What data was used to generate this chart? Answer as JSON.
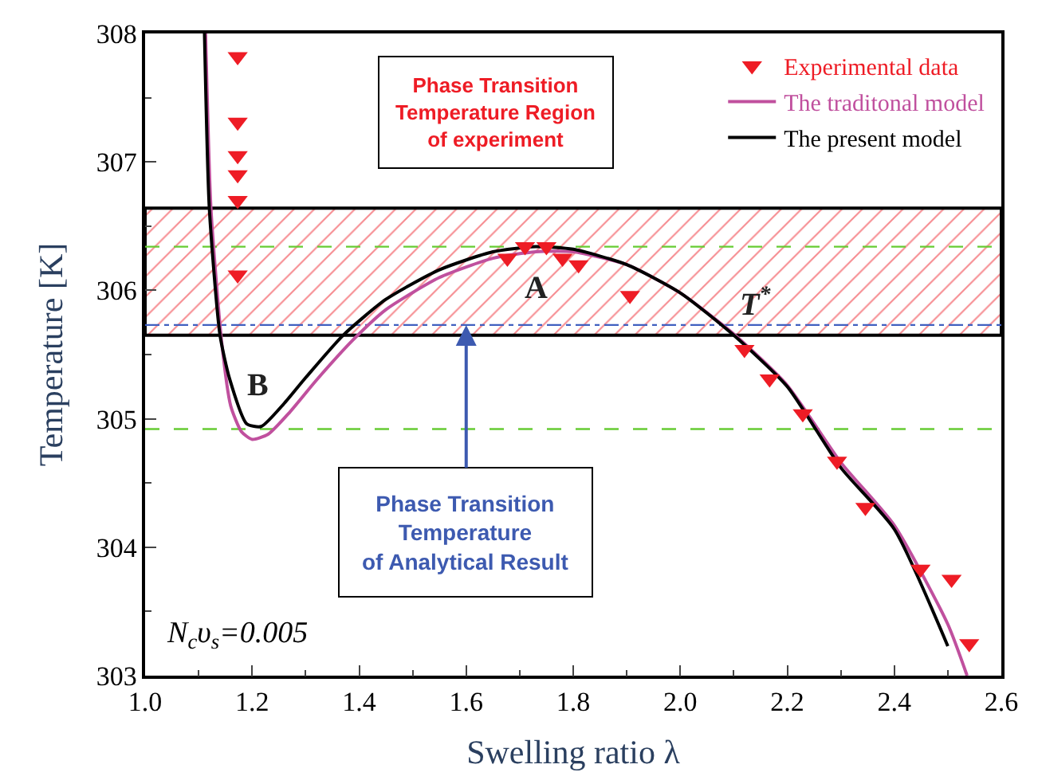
{
  "chart_data": {
    "type": "line",
    "xlabel": "Swelling ratio λ",
    "ylabel": "Temperature [K]",
    "xlim": [
      1.0,
      2.6
    ],
    "ylim": [
      303,
      308
    ],
    "xticks": [
      {
        "value": 1.0,
        "label": "1.0"
      },
      {
        "value": 1.2,
        "label": "1.2"
      },
      {
        "value": 1.4,
        "label": "1.4"
      },
      {
        "value": 1.6,
        "label": "1.6"
      },
      {
        "value": 1.8,
        "label": "1.8"
      },
      {
        "value": 2.0,
        "label": "2.0"
      },
      {
        "value": 2.2,
        "label": "2.2"
      },
      {
        "value": 2.4,
        "label": "2.4"
      },
      {
        "value": 2.6,
        "label": "2.6"
      }
    ],
    "yticks": [
      303,
      304,
      305,
      306,
      307,
      308
    ],
    "grid": false,
    "legend": "top right",
    "series": [
      {
        "name": "Experimental data",
        "type": "scatter",
        "marker": "triangle",
        "color": "#ee1c25",
        "x": [
          1.173,
          1.173,
          1.173,
          1.173,
          1.173,
          1.173,
          1.677,
          1.71,
          1.75,
          1.78,
          1.81,
          1.906,
          2.12,
          2.167,
          2.229,
          2.293,
          2.346,
          2.449,
          2.507,
          2.54
        ],
        "values": [
          307.82,
          307.31,
          307.05,
          306.9,
          306.7,
          306.12,
          306.25,
          306.34,
          306.34,
          306.25,
          306.2,
          305.96,
          305.54,
          305.31,
          305.04,
          304.67,
          304.31,
          303.83,
          303.75,
          303.25
        ]
      },
      {
        "name": "The traditonal model",
        "color": "#c0509e",
        "x": [
          1.113,
          1.123,
          1.143,
          1.16,
          1.18,
          1.2,
          1.23,
          1.27,
          1.32,
          1.39,
          1.45,
          1.55,
          1.65,
          1.73,
          1.8,
          1.9,
          2.0,
          2.1,
          2.2,
          2.3,
          2.4,
          2.5,
          2.536
        ],
        "values": [
          308,
          306.64,
          305.6,
          305.1,
          304.9,
          304.84,
          304.88,
          305.05,
          305.3,
          305.62,
          305.85,
          306.1,
          306.25,
          306.3,
          306.3,
          306.2,
          305.98,
          305.66,
          305.26,
          304.66,
          304.17,
          303.4,
          303.0
        ]
      },
      {
        "name": "The present model",
        "color": "#000000",
        "x": [
          1.111,
          1.12,
          1.14,
          1.158,
          1.19,
          1.217,
          1.26,
          1.3,
          1.37,
          1.45,
          1.55,
          1.65,
          1.73,
          1.8,
          1.9,
          2.0,
          2.1,
          2.2,
          2.3,
          2.4,
          2.5
        ],
        "values": [
          308,
          306.64,
          305.65,
          305.31,
          304.96,
          304.94,
          305.12,
          305.32,
          305.65,
          305.93,
          306.16,
          306.3,
          306.34,
          306.32,
          306.2,
          305.98,
          305.65,
          305.25,
          304.62,
          304.14,
          303.23
        ]
      }
    ],
    "bands": [
      {
        "axis": "y",
        "from": 305.65,
        "to": 306.64,
        "color": "#ee1c25"
      }
    ],
    "ref_lines": [
      {
        "axis": "y",
        "value": 306.34,
        "color": "#66cc33",
        "line_style": "dashed"
      },
      {
        "axis": "y",
        "value": 304.92,
        "color": "#66cc33",
        "line_style": "dashed"
      },
      {
        "axis": "y",
        "value": 305.73,
        "color": "#4060c0",
        "line_style": "dashdot"
      }
    ],
    "annotations": [
      {
        "text": "A",
        "x": 1.73,
        "y": 306.34
      },
      {
        "text": "B",
        "x": 1.217,
        "y": 304.94
      },
      {
        "text": "T$^{*}$",
        "x": 2.1,
        "y": 305.65
      },
      "Phase Transition\nTemperature Region\nof experiment",
      {
        "text": "Phase Transition\nTemperature\nof Analytical Result",
        "x": 1.6,
        "y": 305.73
      },
      "N$_{c}$υ$_{s}$=0.005"
    ]
  }
}
